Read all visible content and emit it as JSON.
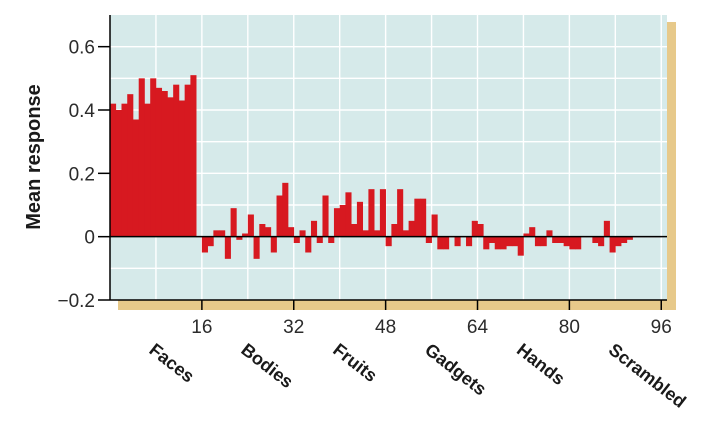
{
  "chart_data": {
    "type": "bar",
    "ylabel": "Mean response",
    "xlabel": "",
    "ylim": [
      -0.2,
      0.7
    ],
    "xlim": [
      0,
      97
    ],
    "grid": true,
    "x_ticks": [
      16,
      32,
      48,
      64,
      80,
      96
    ],
    "y_ticks": [
      -0.2,
      0,
      0.2,
      0.4,
      0.6
    ],
    "y_tick_labels": [
      "−0.2",
      "0",
      "0.2",
      "0.4",
      "0.6"
    ],
    "categories": [
      "Faces",
      "Bodies",
      "Fruits",
      "Gadgets",
      "Hands",
      "Scrambled"
    ],
    "x": [
      1,
      2,
      3,
      4,
      5,
      6,
      7,
      8,
      9,
      10,
      11,
      12,
      13,
      14,
      15,
      16,
      17,
      18,
      19,
      20,
      21,
      22,
      23,
      24,
      25,
      26,
      27,
      28,
      29,
      30,
      31,
      32,
      33,
      34,
      35,
      36,
      37,
      38,
      39,
      40,
      41,
      42,
      43,
      44,
      45,
      46,
      47,
      48,
      49,
      50,
      51,
      52,
      53,
      54,
      55,
      56,
      57,
      58,
      59,
      60,
      61,
      62,
      63,
      64,
      65,
      66,
      67,
      68,
      69,
      70,
      71,
      72,
      73,
      74,
      75,
      76,
      77,
      78,
      79,
      80,
      81,
      82,
      83,
      84,
      85,
      86,
      87,
      88,
      89,
      90,
      91,
      92,
      93,
      94,
      95,
      96
    ],
    "values": [
      0.42,
      0.4,
      0.42,
      0.45,
      0.37,
      0.5,
      0.42,
      0.5,
      0.47,
      0.46,
      0.44,
      0.48,
      0.43,
      0.48,
      0.51,
      0.0,
      -0.05,
      -0.03,
      0.02,
      0.02,
      -0.07,
      0.09,
      -0.01,
      0.01,
      0.07,
      -0.07,
      0.04,
      0.03,
      -0.05,
      0.13,
      0.17,
      0.03,
      -0.02,
      0.02,
      -0.05,
      0.05,
      -0.02,
      0.13,
      -0.02,
      0.09,
      0.1,
      0.14,
      0.04,
      0.11,
      0.02,
      0.15,
      0.02,
      0.15,
      -0.03,
      0.04,
      0.15,
      0.02,
      0.05,
      0.12,
      0.12,
      -0.02,
      0.07,
      -0.04,
      -0.04,
      0.0,
      -0.03,
      0.0,
      -0.03,
      0.05,
      0.04,
      -0.04,
      -0.02,
      -0.04,
      -0.04,
      -0.03,
      -0.03,
      -0.06,
      0.01,
      0.03,
      -0.03,
      -0.03,
      0.02,
      -0.02,
      -0.02,
      -0.03,
      -0.04,
      -0.04,
      0.0,
      0.0,
      -0.02,
      -0.03,
      0.05,
      -0.05,
      -0.03,
      -0.02,
      -0.01,
      0.0,
      0.0,
      0.0,
      0.0,
      0.0
    ],
    "colors": {
      "bar": "#d71920",
      "plot_background": "#d6eaea",
      "grid": "#ffffff",
      "axis": "#000000",
      "shadow": "#e7c98a"
    }
  }
}
